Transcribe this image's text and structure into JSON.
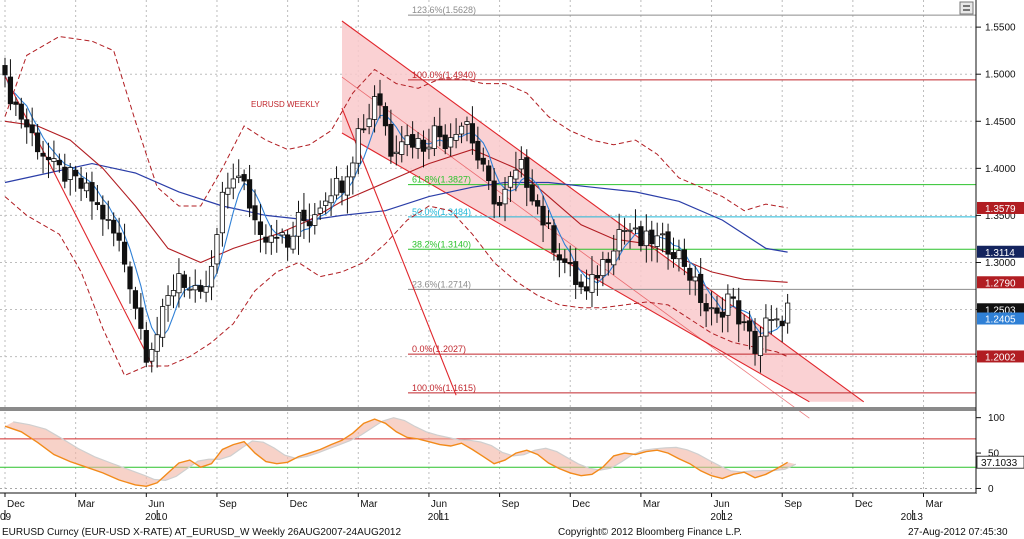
{
  "chart_data": {
    "type": "candlestick",
    "title": "EURUSD WEEKLY",
    "instrument_footer": "EURUSD Curncy (EUR-USD X-RATE) AT_EURUSD_W  Weekly 26AUG2007-24AUG2012",
    "copyright": "Copyright© 2012 Bloomberg Finance L.P.",
    "timestamp": "27-Aug-2012 07:45:30",
    "x_months": [
      {
        "label": "Dec",
        "t": 0
      },
      {
        "label": "Mar",
        "t": 13
      },
      {
        "label": "Jun",
        "t": 26
      },
      {
        "label": "Sep",
        "t": 39
      },
      {
        "label": "Dec",
        "t": 52
      },
      {
        "label": "Mar",
        "t": 65
      },
      {
        "label": "Jun",
        "t": 78
      },
      {
        "label": "Sep",
        "t": 91
      },
      {
        "label": "Dec",
        "t": 104
      },
      {
        "label": "Mar",
        "t": 117
      },
      {
        "label": "Jun",
        "t": 130
      },
      {
        "label": "Sep",
        "t": 143
      },
      {
        "label": "Dec",
        "t": 156
      },
      {
        "label": "Mar",
        "t": 169
      }
    ],
    "x_years": [
      {
        "label": "09",
        "t": 0
      },
      {
        "label": "2010",
        "t": 28
      },
      {
        "label": "2011",
        "t": 80
      },
      {
        "label": "2012",
        "t": 132
      },
      {
        "label": "2013",
        "t": 167
      }
    ],
    "price_axis": {
      "ylim": [
        1.1465,
        1.5735
      ],
      "ticks": [
        "1.5500",
        "1.5000",
        "1.4500",
        "1.4000",
        "1.3500",
        "1.3000",
        "1.2500",
        "1.2000"
      ]
    },
    "osc_axis": {
      "ylim": [
        -5,
        108
      ],
      "ticks": [
        "100",
        "50",
        "0"
      ],
      "ref_lines": [
        70,
        30
      ]
    },
    "price_badges": [
      {
        "value": "1.3579",
        "color": "#b11d22"
      },
      {
        "value": "1.3114",
        "color": "#14245e"
      },
      {
        "value": "1.2790",
        "color": "#b11d22"
      },
      {
        "value": "1.2503",
        "color": "#111111"
      },
      {
        "value": "1.2405",
        "color": "#2f80d6"
      },
      {
        "value": "1.2002",
        "color": "#b11d22"
      }
    ],
    "osc_badge": {
      "value": "37.1033"
    },
    "fib_levels": [
      {
        "label": "123.6%(1.5628)",
        "value": 1.5628,
        "color": "#8c8c8c"
      },
      {
        "label": "100.0%(1.4940)",
        "value": 1.494,
        "color": "#c0262c"
      },
      {
        "label": "61.8%(1.3827)",
        "value": 1.3827,
        "color": "#2cc22c"
      },
      {
        "label": "50.0%(1.3484)",
        "value": 1.3484,
        "color": "#22b8d8"
      },
      {
        "label": "38.2%(1.3140)",
        "value": 1.314,
        "color": "#2cc22c"
      },
      {
        "label": "23.6%(1.2714)",
        "value": 1.2714,
        "color": "#8c8c8c"
      },
      {
        "label": "0.0%(1.2027)",
        "value": 1.2027,
        "color": "#c0262c"
      },
      {
        "label": "100.0%(1.1615)",
        "value": 1.1615,
        "color": "#c0262c"
      }
    ],
    "close_anchors": [
      [
        0,
        1.49
      ],
      [
        3,
        1.455
      ],
      [
        6,
        1.425
      ],
      [
        9,
        1.4
      ],
      [
        12,
        1.39
      ],
      [
        15,
        1.375
      ],
      [
        18,
        1.35
      ],
      [
        21,
        1.32
      ],
      [
        23,
        1.28
      ],
      [
        25,
        1.23
      ],
      [
        26,
        1.205
      ],
      [
        28,
        1.225
      ],
      [
        30,
        1.26
      ],
      [
        32,
        1.29
      ],
      [
        34,
        1.27
      ],
      [
        36,
        1.26
      ],
      [
        38,
        1.29
      ],
      [
        40,
        1.365
      ],
      [
        42,
        1.395
      ],
      [
        44,
        1.38
      ],
      [
        46,
        1.345
      ],
      [
        48,
        1.33
      ],
      [
        50,
        1.335
      ],
      [
        52,
        1.315
      ],
      [
        54,
        1.345
      ],
      [
        56,
        1.345
      ],
      [
        58,
        1.365
      ],
      [
        60,
        1.38
      ],
      [
        62,
        1.385
      ],
      [
        64,
        1.415
      ],
      [
        65,
        1.44
      ],
      [
        67,
        1.455
      ],
      [
        68,
        1.48
      ],
      [
        69,
        1.47
      ],
      [
        71,
        1.42
      ],
      [
        73,
        1.435
      ],
      [
        75,
        1.43
      ],
      [
        77,
        1.425
      ],
      [
        79,
        1.44
      ],
      [
        81,
        1.43
      ],
      [
        83,
        1.445
      ],
      [
        85,
        1.45
      ],
      [
        87,
        1.41
      ],
      [
        89,
        1.38
      ],
      [
        91,
        1.36
      ],
      [
        93,
        1.385
      ],
      [
        95,
        1.4
      ],
      [
        97,
        1.375
      ],
      [
        99,
        1.345
      ],
      [
        101,
        1.32
      ],
      [
        103,
        1.3
      ],
      [
        105,
        1.28
      ],
      [
        107,
        1.265
      ],
      [
        109,
        1.29
      ],
      [
        111,
        1.31
      ],
      [
        113,
        1.335
      ],
      [
        115,
        1.335
      ],
      [
        117,
        1.32
      ],
      [
        119,
        1.325
      ],
      [
        121,
        1.32
      ],
      [
        123,
        1.315
      ],
      [
        125,
        1.3
      ],
      [
        127,
        1.275
      ],
      [
        129,
        1.25
      ],
      [
        131,
        1.24
      ],
      [
        133,
        1.265
      ],
      [
        134,
        1.255
      ],
      [
        136,
        1.23
      ],
      [
        138,
        1.21
      ],
      [
        140,
        1.235
      ],
      [
        142,
        1.232
      ],
      [
        144,
        1.252
      ]
    ],
    "bands": {
      "upper": [
        [
          0,
          1.455
        ],
        [
          4,
          1.52
        ],
        [
          10,
          1.54
        ],
        [
          16,
          1.535
        ],
        [
          20,
          1.525
        ],
        [
          24,
          1.45
        ],
        [
          28,
          1.38
        ],
        [
          32,
          1.36
        ],
        [
          36,
          1.36
        ],
        [
          40,
          1.4
        ],
        [
          44,
          1.445
        ],
        [
          48,
          1.43
        ],
        [
          52,
          1.42
        ],
        [
          56,
          1.425
        ],
        [
          60,
          1.44
        ],
        [
          64,
          1.48
        ],
        [
          68,
          1.505
        ],
        [
          72,
          1.49
        ],
        [
          76,
          1.485
        ],
        [
          80,
          1.495
        ],
        [
          84,
          1.495
        ],
        [
          88,
          1.49
        ],
        [
          92,
          1.49
        ],
        [
          96,
          1.48
        ],
        [
          100,
          1.455
        ],
        [
          104,
          1.44
        ],
        [
          108,
          1.43
        ],
        [
          112,
          1.425
        ],
        [
          116,
          1.43
        ],
        [
          120,
          1.415
        ],
        [
          124,
          1.39
        ],
        [
          128,
          1.38
        ],
        [
          132,
          1.37
        ],
        [
          136,
          1.355
        ],
        [
          140,
          1.362
        ],
        [
          144,
          1.358
        ]
      ],
      "lower": [
        [
          0,
          1.37
        ],
        [
          4,
          1.35
        ],
        [
          10,
          1.33
        ],
        [
          14,
          1.29
        ],
        [
          18,
          1.23
        ],
        [
          22,
          1.18
        ],
        [
          26,
          1.19
        ],
        [
          30,
          1.19
        ],
        [
          34,
          1.2
        ],
        [
          38,
          1.215
        ],
        [
          42,
          1.235
        ],
        [
          46,
          1.27
        ],
        [
          50,
          1.29
        ],
        [
          54,
          1.3
        ],
        [
          58,
          1.285
        ],
        [
          62,
          1.29
        ],
        [
          66,
          1.3
        ],
        [
          70,
          1.32
        ],
        [
          74,
          1.345
        ],
        [
          78,
          1.36
        ],
        [
          82,
          1.355
        ],
        [
          86,
          1.33
        ],
        [
          90,
          1.3
        ],
        [
          94,
          1.28
        ],
        [
          98,
          1.265
        ],
        [
          102,
          1.255
        ],
        [
          106,
          1.252
        ],
        [
          110,
          1.252
        ],
        [
          114,
          1.255
        ],
        [
          118,
          1.258
        ],
        [
          122,
          1.255
        ],
        [
          126,
          1.24
        ],
        [
          130,
          1.225
        ],
        [
          134,
          1.215
        ],
        [
          138,
          1.21
        ],
        [
          142,
          1.205
        ],
        [
          144,
          1.2
        ]
      ]
    },
    "ma_long_blue": [
      [
        0,
        1.385
      ],
      [
        8,
        1.395
      ],
      [
        16,
        1.405
      ],
      [
        24,
        1.395
      ],
      [
        32,
        1.375
      ],
      [
        40,
        1.36
      ],
      [
        48,
        1.35
      ],
      [
        56,
        1.345
      ],
      [
        62,
        1.35
      ],
      [
        70,
        1.355
      ],
      [
        78,
        1.37
      ],
      [
        86,
        1.38
      ],
      [
        92,
        1.385
      ],
      [
        100,
        1.385
      ],
      [
        108,
        1.38
      ],
      [
        116,
        1.375
      ],
      [
        124,
        1.365
      ],
      [
        132,
        1.345
      ],
      [
        140,
        1.315
      ],
      [
        144,
        1.311
      ]
    ],
    "ma_mid_red": [
      [
        0,
        1.45
      ],
      [
        6,
        1.445
      ],
      [
        12,
        1.43
      ],
      [
        18,
        1.4
      ],
      [
        24,
        1.36
      ],
      [
        30,
        1.315
      ],
      [
        36,
        1.3
      ],
      [
        42,
        1.315
      ],
      [
        50,
        1.33
      ],
      [
        56,
        1.345
      ],
      [
        62,
        1.365
      ],
      [
        70,
        1.385
      ],
      [
        78,
        1.405
      ],
      [
        86,
        1.42
      ],
      [
        94,
        1.4
      ],
      [
        100,
        1.37
      ],
      [
        106,
        1.34
      ],
      [
        112,
        1.325
      ],
      [
        118,
        1.32
      ],
      [
        124,
        1.305
      ],
      [
        130,
        1.29
      ],
      [
        136,
        1.282
      ],
      [
        144,
        1.279
      ]
    ],
    "channel": {
      "upper": [
        [
          62,
          1.5565
        ],
        [
          158,
          1.152
        ]
      ],
      "lower": [
        [
          62,
          1.4375
        ],
        [
          148,
          1.152
        ]
      ],
      "fill": "#f9c9cb",
      "line": "#e0262c"
    },
    "trend_lines": [
      [
        [
          0,
          1.498
        ],
        [
          27,
          1.192
        ]
      ],
      [
        [
          62,
          1.464
        ],
        [
          83,
          1.159
        ]
      ]
    ],
    "oscillator": [
      [
        0,
        88
      ],
      [
        3,
        80
      ],
      [
        6,
        65
      ],
      [
        9,
        48
      ],
      [
        12,
        38
      ],
      [
        15,
        30
      ],
      [
        18,
        22
      ],
      [
        21,
        12
      ],
      [
        24,
        5
      ],
      [
        26,
        3
      ],
      [
        28,
        8
      ],
      [
        30,
        22
      ],
      [
        32,
        36
      ],
      [
        34,
        40
      ],
      [
        36,
        30
      ],
      [
        38,
        35
      ],
      [
        40,
        55
      ],
      [
        42,
        62
      ],
      [
        44,
        66
      ],
      [
        46,
        50
      ],
      [
        48,
        38
      ],
      [
        50,
        35
      ],
      [
        52,
        37
      ],
      [
        54,
        45
      ],
      [
        56,
        50
      ],
      [
        58,
        55
      ],
      [
        60,
        62
      ],
      [
        62,
        68
      ],
      [
        64,
        78
      ],
      [
        66,
        92
      ],
      [
        68,
        98
      ],
      [
        70,
        92
      ],
      [
        72,
        80
      ],
      [
        74,
        72
      ],
      [
        76,
        70
      ],
      [
        78,
        66
      ],
      [
        80,
        62
      ],
      [
        82,
        60
      ],
      [
        84,
        64
      ],
      [
        86,
        55
      ],
      [
        88,
        45
      ],
      [
        90,
        35
      ],
      [
        92,
        40
      ],
      [
        94,
        50
      ],
      [
        96,
        54
      ],
      [
        98,
        48
      ],
      [
        100,
        36
      ],
      [
        102,
        28
      ],
      [
        104,
        22
      ],
      [
        106,
        18
      ],
      [
        108,
        20
      ],
      [
        110,
        30
      ],
      [
        112,
        46
      ],
      [
        114,
        50
      ],
      [
        116,
        48
      ],
      [
        118,
        52
      ],
      [
        120,
        54
      ],
      [
        122,
        50
      ],
      [
        124,
        42
      ],
      [
        126,
        35
      ],
      [
        128,
        25
      ],
      [
        130,
        18
      ],
      [
        132,
        14
      ],
      [
        134,
        20
      ],
      [
        136,
        23
      ],
      [
        138,
        15
      ],
      [
        140,
        20
      ],
      [
        142,
        28
      ],
      [
        144,
        37
      ]
    ]
  }
}
